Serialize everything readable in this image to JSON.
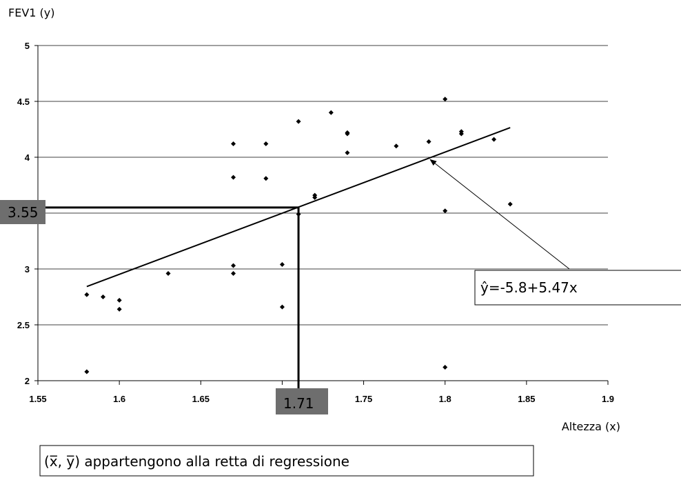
{
  "chart_data": {
    "type": "scatter",
    "xlabel": "Altezza (x)",
    "ylabel": "FEV1 (y)",
    "xlim": [
      1.55,
      1.9
    ],
    "ylim": [
      2,
      5
    ],
    "x_ticks": [
      "1.55",
      "1.6",
      "1.65",
      "1.7",
      "1.75",
      "1.8",
      "1.85",
      "1.9"
    ],
    "y_ticks": [
      "2",
      "2.5",
      "3",
      "3.5",
      "4",
      "4.5",
      "5"
    ],
    "y_tick_values": [
      2,
      2.5,
      3,
      3.5,
      4,
      4.5,
      5
    ],
    "x_tick_values": [
      1.55,
      1.6,
      1.65,
      1.7,
      1.75,
      1.8,
      1.85,
      1.9
    ],
    "grid": "horizontal",
    "points": [
      [
        1.58,
        2.77
      ],
      [
        1.58,
        2.08
      ],
      [
        1.59,
        2.75
      ],
      [
        1.6,
        2.72
      ],
      [
        1.6,
        2.64
      ],
      [
        1.63,
        2.96
      ],
      [
        1.67,
        4.12
      ],
      [
        1.67,
        3.82
      ],
      [
        1.67,
        3.03
      ],
      [
        1.67,
        2.96
      ],
      [
        1.69,
        4.12
      ],
      [
        1.69,
        3.81
      ],
      [
        1.7,
        3.04
      ],
      [
        1.7,
        2.66
      ],
      [
        1.71,
        4.32
      ],
      [
        1.71,
        3.49
      ],
      [
        1.72,
        3.66
      ],
      [
        1.72,
        3.64
      ],
      [
        1.73,
        4.4
      ],
      [
        1.74,
        4.22
      ],
      [
        1.74,
        4.21
      ],
      [
        1.74,
        4.04
      ],
      [
        1.77,
        4.1
      ],
      [
        1.79,
        4.14
      ],
      [
        1.8,
        4.52
      ],
      [
        1.8,
        3.52
      ],
      [
        1.8,
        2.12
      ],
      [
        1.81,
        4.23
      ],
      [
        1.81,
        4.21
      ],
      [
        1.83,
        4.16
      ],
      [
        1.84,
        3.58
      ]
    ],
    "regression": {
      "intercept": -5.8,
      "slope": 5.47,
      "x_range": [
        1.58,
        1.84
      ]
    },
    "highlight": {
      "x": 1.71,
      "y": 3.55,
      "x_label": "1.71",
      "y_label": "3.55"
    },
    "equation_label": "ŷ=-5.8+5.47x",
    "equation_arrow_target_x": 1.79,
    "note": "(x̅, y̅) appartengono alla retta di regressione"
  }
}
